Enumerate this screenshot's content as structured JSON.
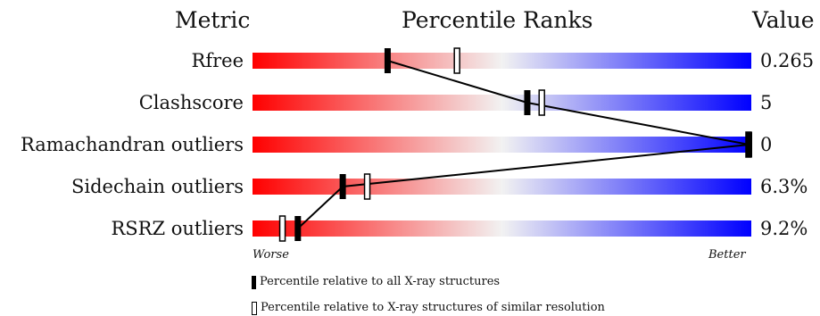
{
  "chart_data": {
    "type": "percentile_slider",
    "headers": {
      "metric": "Metric",
      "percentile": "Percentile Ranks",
      "value": "Value"
    },
    "metrics": [
      {
        "name": "Rfree",
        "value": "0.265",
        "percentile_all": 27,
        "percentile_similar": 41
      },
      {
        "name": "Clashscore",
        "value": "5",
        "percentile_all": 55,
        "percentile_similar": 58
      },
      {
        "name": "Ramachandran outliers",
        "value": "0",
        "percentile_all": 100,
        "percentile_similar": 100
      },
      {
        "name": "Sidechain outliers",
        "value": "6.3%",
        "percentile_all": 18,
        "percentile_similar": 23
      },
      {
        "name": "RSRZ outliers",
        "value": "9.2%",
        "percentile_all": 9,
        "percentile_similar": 6
      }
    ],
    "axis": {
      "worse_label": "Worse",
      "better_label": "Better",
      "range": [
        0,
        100
      ]
    },
    "legend": [
      {
        "marker": "filled",
        "label": "Percentile relative to all X-ray structures"
      },
      {
        "marker": "open",
        "label": "Percentile relative to X-ray structures of similar resolution"
      }
    ],
    "colors": {
      "worse": "#ff0000",
      "middle": "#f2f2f2",
      "better": "#0000ff",
      "marker": "#000000"
    }
  }
}
